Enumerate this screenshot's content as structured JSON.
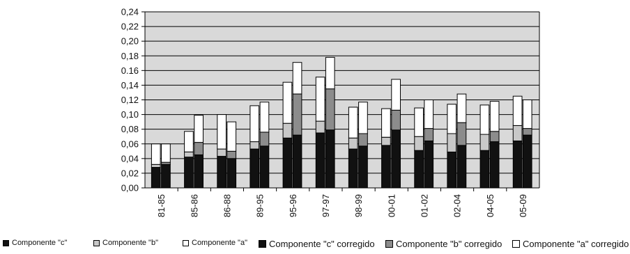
{
  "chart_data": {
    "type": "bar",
    "stacked": true,
    "grouped_pairs": true,
    "categories": [
      "81-85",
      "85-86",
      "86-88",
      "89-95",
      "95-96",
      "97-97",
      "98-99",
      "00-01",
      "01-02",
      "02-04",
      "04-05",
      "05-09"
    ],
    "ylim": [
      0,
      0.24
    ],
    "yticks": [
      "0,00",
      "0,02",
      "0,04",
      "0,06",
      "0,08",
      "0,10",
      "0,12",
      "0,14",
      "0.16",
      "0,18",
      "0,20",
      "0,22",
      "0,24"
    ],
    "grid": true,
    "plot_background": "#d9d9d9",
    "legend_position": "bottom",
    "series": [
      {
        "name": "Componente \"c\"",
        "group": "original",
        "color": "#111111",
        "values": [
          0.028,
          0.042,
          0.043,
          0.053,
          0.068,
          0.075,
          0.053,
          0.058,
          0.051,
          0.049,
          0.051,
          0.064
        ]
      },
      {
        "name": "Componente \"b\"",
        "group": "original",
        "color": "#c8c8c8",
        "values": [
          0.004,
          0.007,
          0.01,
          0.01,
          0.02,
          0.016,
          0.015,
          0.011,
          0.019,
          0.025,
          0.022,
          0.021
        ]
      },
      {
        "name": "Componente \"a\"",
        "group": "original",
        "color": "#ffffff",
        "values": [
          0.028,
          0.028,
          0.047,
          0.049,
          0.056,
          0.06,
          0.042,
          0.039,
          0.039,
          0.04,
          0.04,
          0.04
        ]
      },
      {
        "name": "Componente \"c\" corregido",
        "group": "corregido",
        "color": "#111111",
        "values": [
          0.032,
          0.045,
          0.04,
          0.057,
          0.072,
          0.079,
          0.057,
          0.079,
          0.064,
          0.058,
          0.063,
          0.072
        ]
      },
      {
        "name": "Componente \"b\" corregido",
        "group": "corregido",
        "color": "#8c8c8c",
        "values": [
          0.003,
          0.017,
          0.01,
          0.019,
          0.056,
          0.056,
          0.017,
          0.027,
          0.017,
          0.031,
          0.014,
          0.009
        ]
      },
      {
        "name": "Componente \"a\" corregido",
        "group": "corregido",
        "color": "#ffffff",
        "values": [
          0.025,
          0.037,
          0.04,
          0.041,
          0.043,
          0.043,
          0.043,
          0.042,
          0.039,
          0.039,
          0.041,
          0.039
        ]
      }
    ],
    "legend": [
      {
        "label": "Componente \"c\"",
        "color": "#111111",
        "size": "small"
      },
      {
        "label": "Componente \"b\"",
        "color": "#c8c8c8",
        "size": "small"
      },
      {
        "label": "Componente \"a\"",
        "color": "#ffffff",
        "size": "small"
      },
      {
        "label": "Componente \"c\" corregido",
        "color": "#111111",
        "size": "large"
      },
      {
        "label": "Componente \"b\" corregido",
        "color": "#8c8c8c",
        "size": "large"
      },
      {
        "label": "Componente \"a\" corregido",
        "color": "#ffffff",
        "size": "large"
      }
    ]
  }
}
